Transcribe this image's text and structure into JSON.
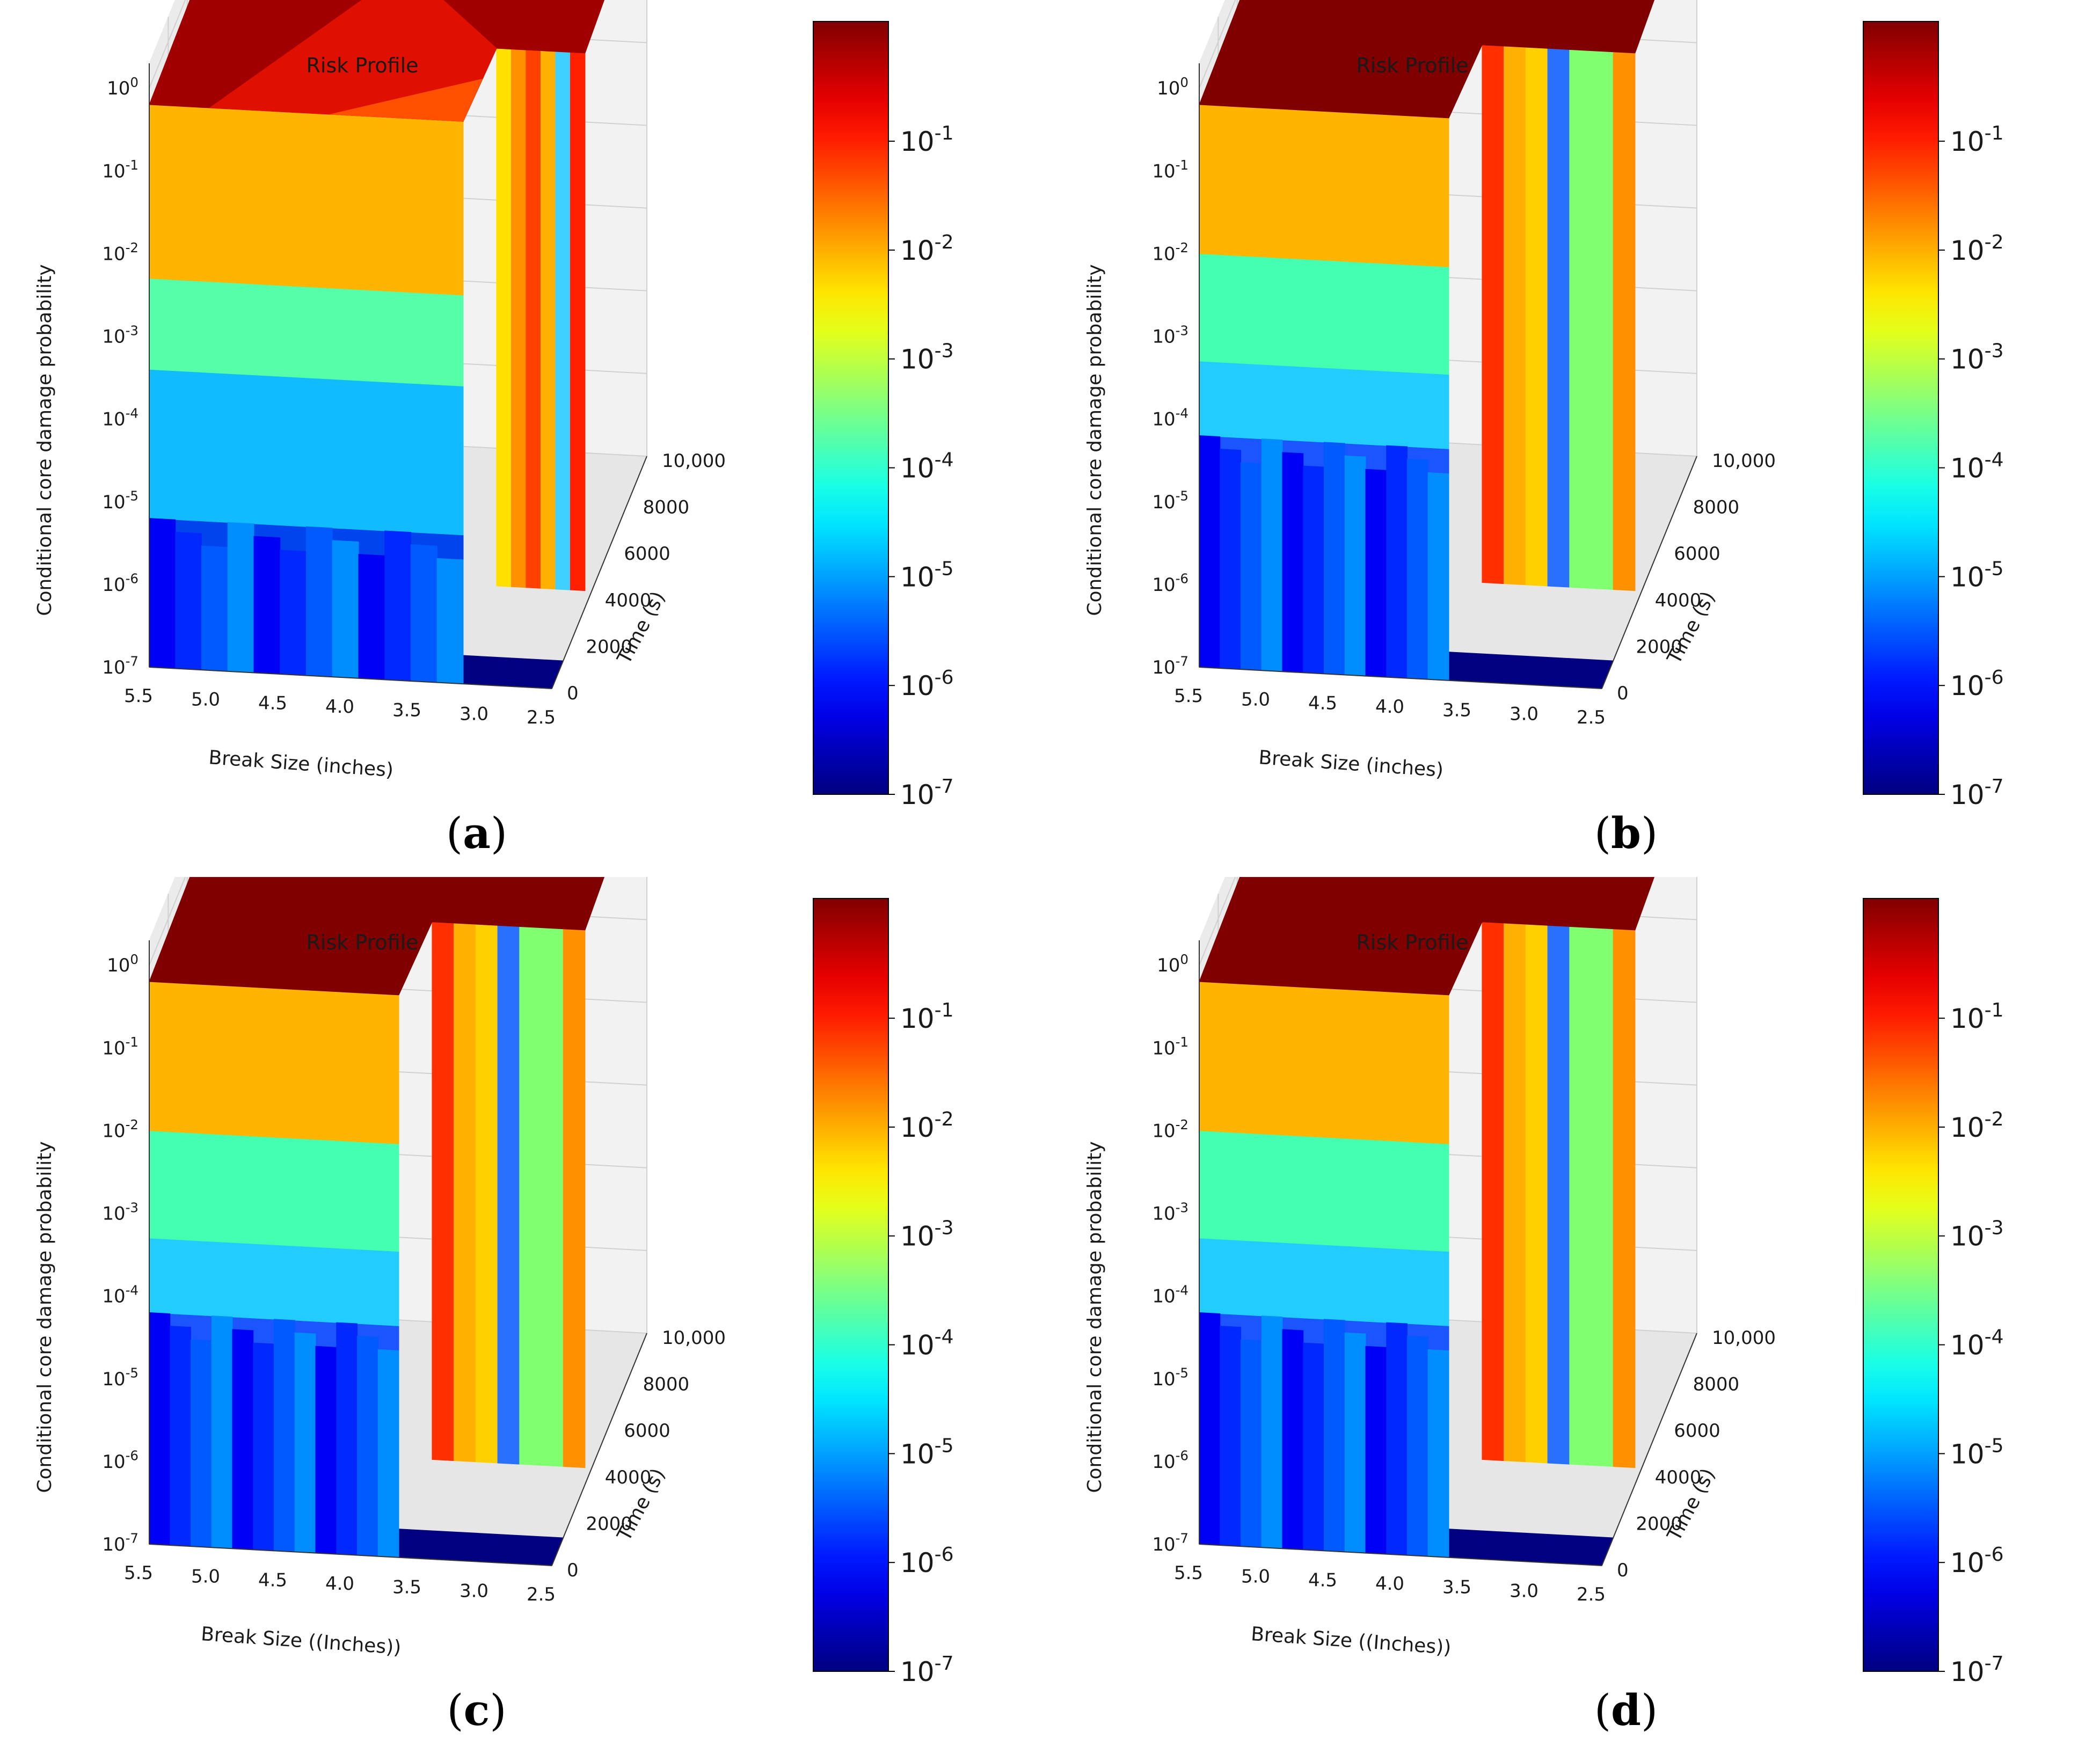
{
  "figure": {
    "panels": [
      {
        "id": "a",
        "caption": "(a)",
        "title": "Risk Profile",
        "xlabel": "Break Size  (inches)",
        "ylabel": "Time (s)",
        "zlabel": "Conditional core damage probability"
      },
      {
        "id": "b",
        "caption": "(b)",
        "title": "Risk Profile",
        "xlabel": "Break Size  (inches)",
        "ylabel": "Time (s)",
        "zlabel": "Conditional core damage probability"
      },
      {
        "id": "c",
        "caption": "(c)",
        "title": "Risk Profile",
        "xlabel": "Break Size  ((Inches))",
        "ylabel": "Time (s)",
        "zlabel": "Conditional core damage probability"
      },
      {
        "id": "d",
        "caption": "(d)",
        "title": "Risk Profile",
        "xlabel": "Break Size  ((Inches))",
        "ylabel": "Time (s)",
        "zlabel": "Conditional core damage probability"
      }
    ]
  },
  "chart_data": [
    {
      "type": "surface3d",
      "panel": "a",
      "title": "Risk Profile",
      "xlabel": "Break Size  (inches)",
      "ylabel": "Time (s)",
      "zlabel": "Conditional core damage probability",
      "x_ticks": [
        "5.5",
        "5.0",
        "4.5",
        "4.0",
        "3.5",
        "3.0",
        "2.5"
      ],
      "y_ticks": [
        "0",
        "2000",
        "4000",
        "6000",
        "8000",
        "10,000"
      ],
      "z_ticks": [
        "10^-7",
        "10^-6",
        "10^-5",
        "10^-4",
        "10^-3",
        "10^-2",
        "10^-1",
        "10^0"
      ],
      "zscale": "log",
      "xlim": [
        5.5,
        2.5
      ],
      "ylim": [
        0,
        10000
      ],
      "zlim": [
        1e-07,
        1
      ],
      "colorbar": {
        "colormap": "jet",
        "scale": "log",
        "ticks": [
          "10^-7",
          "10^-6",
          "10^-5",
          "10^-4",
          "10^-3",
          "10^-2",
          "10^-1"
        ]
      },
      "colors": {
        "dark_red": "#800000",
        "red": "#ff2000",
        "orange": "#ffb000",
        "yellow": "#ffff00",
        "green": "#7fff7f",
        "cyan": "#40ffc0",
        "blue": "#0060ff",
        "navy": "#000080"
      }
    },
    {
      "type": "surface3d",
      "panel": "b",
      "title": "Risk Profile",
      "xlabel": "Break Size  (inches)",
      "ylabel": "Time (s)",
      "zlabel": "Conditional core damage probability",
      "x_ticks": [
        "5.5",
        "5.0",
        "4.5",
        "4.0",
        "3.5",
        "3.0",
        "2.5"
      ],
      "y_ticks": [
        "0",
        "2000",
        "4000",
        "6000",
        "8000",
        "10,000"
      ],
      "z_ticks": [
        "10^-7",
        "10^-6",
        "10^-5",
        "10^-4",
        "10^-3",
        "10^-2",
        "10^-1",
        "10^0"
      ],
      "zscale": "log",
      "xlim": [
        5.5,
        2.5
      ],
      "ylim": [
        0,
        10000
      ],
      "zlim": [
        1e-07,
        1
      ],
      "colorbar": {
        "colormap": "jet",
        "scale": "log",
        "ticks": [
          "10^-7",
          "10^-6",
          "10^-5",
          "10^-4",
          "10^-3",
          "10^-2",
          "10^-1"
        ]
      }
    },
    {
      "type": "surface3d",
      "panel": "c",
      "title": "Risk Profile",
      "xlabel": "Break Size  ((Inches))",
      "ylabel": "Time (s)",
      "zlabel": "Conditional core damage probability",
      "x_ticks": [
        "5.5",
        "5.0",
        "4.5",
        "4.0",
        "3.5",
        "3.0",
        "2.5"
      ],
      "y_ticks": [
        "0",
        "2000",
        "4000",
        "6000",
        "8000",
        "10,000"
      ],
      "z_ticks": [
        "10^-7",
        "10^-6",
        "10^-5",
        "10^-4",
        "10^-3",
        "10^-2",
        "10^-1",
        "10^0"
      ],
      "zscale": "log",
      "xlim": [
        5.5,
        2.5
      ],
      "ylim": [
        0,
        10000
      ],
      "zlim": [
        1e-07,
        1
      ],
      "colorbar": {
        "colormap": "jet",
        "scale": "log",
        "ticks": [
          "10^-7",
          "10^-6",
          "10^-5",
          "10^-4",
          "10^-3",
          "10^-2",
          "10^-1"
        ]
      }
    },
    {
      "type": "surface3d",
      "panel": "d",
      "title": "Risk Profile",
      "xlabel": "Break Size  ((Inches))",
      "ylabel": "Time (s)",
      "zlabel": "Conditional core damage probability",
      "x_ticks": [
        "5.5",
        "5.0",
        "4.5",
        "4.0",
        "3.5",
        "3.0",
        "2.5"
      ],
      "y_ticks": [
        "0",
        "2000",
        "4000",
        "6000",
        "8000",
        "10,000"
      ],
      "z_ticks": [
        "10^-7",
        "10^-6",
        "10^-5",
        "10^-4",
        "10^-3",
        "10^-2",
        "10^-1",
        "10^0"
      ],
      "zscale": "log",
      "xlim": [
        5.5,
        2.5
      ],
      "ylim": [
        0,
        10000
      ],
      "zlim": [
        1e-07,
        1
      ],
      "colorbar": {
        "colormap": "jet",
        "scale": "log",
        "ticks": [
          "10^-7",
          "10^-6",
          "10^-5",
          "10^-4",
          "10^-3",
          "10^-2",
          "10^-1"
        ]
      }
    }
  ]
}
